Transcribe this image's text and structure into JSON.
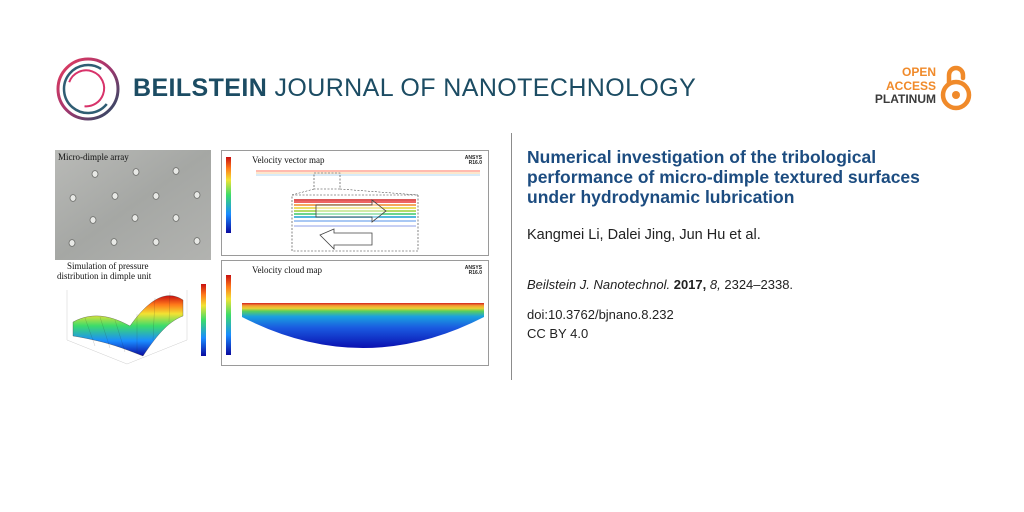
{
  "header": {
    "journal_bold": "BEILSTEIN",
    "journal_light": "JOURNAL OF NANOTECHNOLOGY",
    "open_access": {
      "line1": "OPEN",
      "line2": "ACCESS",
      "line3": "PLATINUM"
    },
    "colors": {
      "brand": "#1c4c63",
      "accent": "#f08a2a",
      "logo_pink": "#d8336a"
    }
  },
  "figure": {
    "photo_label": "Micro-dimple array",
    "pressure_label_1": "Simulation of pressure",
    "pressure_label_2": "distribution in dimple unit",
    "vector_label": "Velocity vector map",
    "cloud_label": "Velocity cloud map"
  },
  "article": {
    "title": "Numerical investigation of the tribological performance of micro-dimple textured surfaces under hydrodynamic lubrication",
    "authors": "Kangmei Li, Dalei Jing, Jun Hu et al.",
    "citation": {
      "journal": "Beilstein J. Nanotechnol.",
      "year": "2017,",
      "volume": "8,",
      "pages": "2324–2338."
    },
    "doi": "doi:10.3762/bjnano.8.232",
    "license": "CC BY 4.0"
  }
}
